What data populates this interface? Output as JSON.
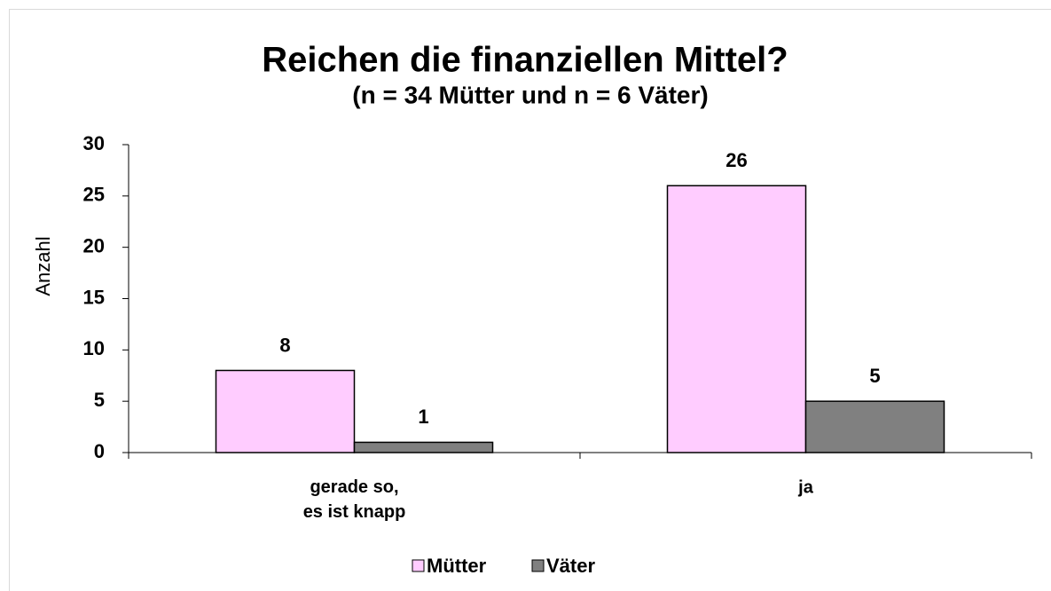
{
  "chart_data": {
    "type": "bar",
    "title": "Reichen die finanziellen Mittel?",
    "subtitle": "(n = 34 Mütter und n = 6 Väter)",
    "y_label": "Anzahl",
    "categories": [
      "gerade so,\nes ist knapp",
      "ja"
    ],
    "series": [
      {
        "name": "Mütter",
        "color": "#ffccff",
        "values": [
          8,
          26
        ]
      },
      {
        "name": "Väter",
        "color": "#808080",
        "values": [
          1,
          5
        ]
      }
    ],
    "ylim": [
      0,
      30
    ],
    "yticks": [
      0,
      5,
      10,
      15,
      20,
      25,
      30
    ],
    "grid": false,
    "legend": "bottom"
  }
}
